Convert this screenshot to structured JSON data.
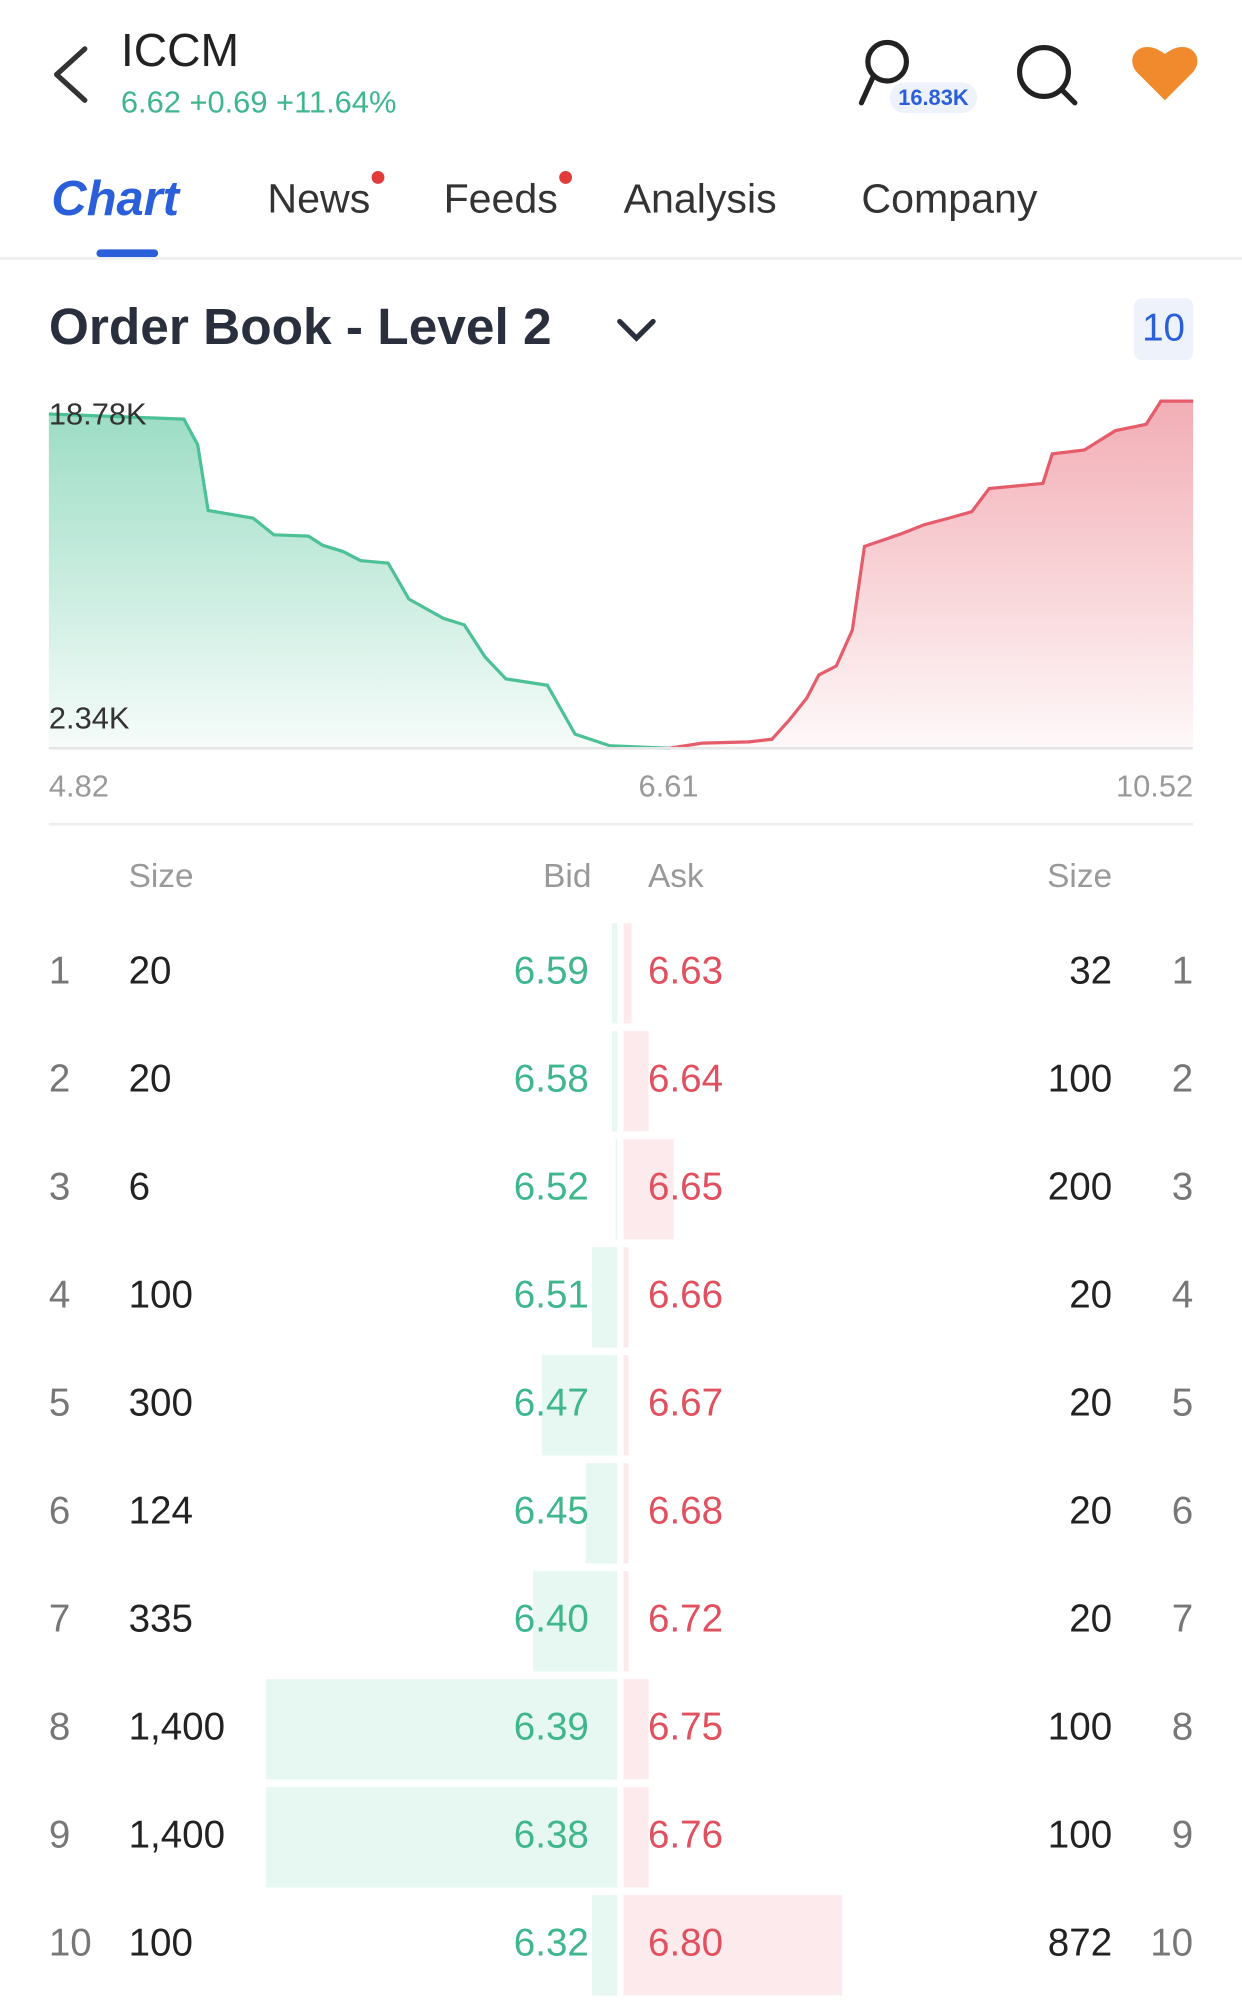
{
  "header": {
    "symbol": "ICCM",
    "quote": "6.62 +0.69 +11.64%",
    "followers": "16.83K"
  },
  "tabs": [
    "Chart",
    "News",
    "Feeds",
    "Analysis",
    "Company"
  ],
  "section": {
    "title": "Order Book - Level 2",
    "levels": "10"
  },
  "chart_data": {
    "type": "area",
    "xlim": [
      4.82,
      10.52
    ],
    "xticks": [
      4.82,
      6.61,
      10.52
    ],
    "ylim": [
      0,
      18780
    ],
    "yticks": [
      {
        "value": 18780,
        "label": "18.78K"
      },
      {
        "value": 2340,
        "label": "2.34K"
      }
    ],
    "series": [
      {
        "color": "#4cc196",
        "x": [
          4.82,
          5.21,
          5.25,
          5.28,
          5.41,
          5.47,
          5.57,
          5.61,
          5.67,
          5.72,
          5.8,
          5.86,
          5.96,
          6.02,
          6.08,
          6.14,
          6.26,
          6.34,
          6.44,
          6.61
        ],
        "values": [
          18085,
          17807,
          16416,
          12868,
          12451,
          11547,
          11477,
          10990,
          10643,
          10156,
          10017,
          8070,
          7026,
          6678,
          4939,
          3756,
          3409,
          765,
          139,
          0
        ]
      },
      {
        "color": "#e55c6b",
        "x": [
          6.61,
          6.86,
          7.21,
          7.38,
          7.51,
          7.64,
          7.73,
          7.86,
          7.98,
          8.07,
          8.35,
          8.52,
          8.7,
          8.87,
          9.0,
          9.4,
          9.47,
          9.71,
          9.94,
          10.17,
          10.28,
          10.52
        ],
        "values": [
          0,
          278,
          348,
          487,
          1530,
          2713,
          3965,
          4452,
          6400,
          10921,
          11617,
          12103,
          12451,
          12799,
          14051,
          14329,
          15929,
          16138,
          17181,
          17529,
          18780,
          18780
        ]
      }
    ]
  },
  "order_book": {
    "headers": {
      "bid_size": "Size",
      "bid": "Bid",
      "ask": "Ask",
      "ask_size": "Size"
    },
    "levels": [
      1,
      2,
      3,
      4,
      5,
      6,
      7,
      8,
      9,
      10
    ],
    "bid_sizes": [
      20,
      20,
      6,
      100,
      300,
      124,
      335,
      1400,
      1400,
      100
    ],
    "bid_size_labels": [
      "20",
      "20",
      "6",
      "100",
      "300",
      "124",
      "335",
      "1,400",
      "1,400",
      "100"
    ],
    "bids": [
      "6.59",
      "6.58",
      "6.52",
      "6.51",
      "6.47",
      "6.45",
      "6.40",
      "6.39",
      "6.38",
      "6.32"
    ],
    "asks": [
      "6.63",
      "6.64",
      "6.65",
      "6.66",
      "6.67",
      "6.68",
      "6.72",
      "6.75",
      "6.76",
      "6.80"
    ],
    "ask_sizes": [
      32,
      100,
      200,
      20,
      20,
      20,
      20,
      100,
      100,
      872
    ]
  }
}
